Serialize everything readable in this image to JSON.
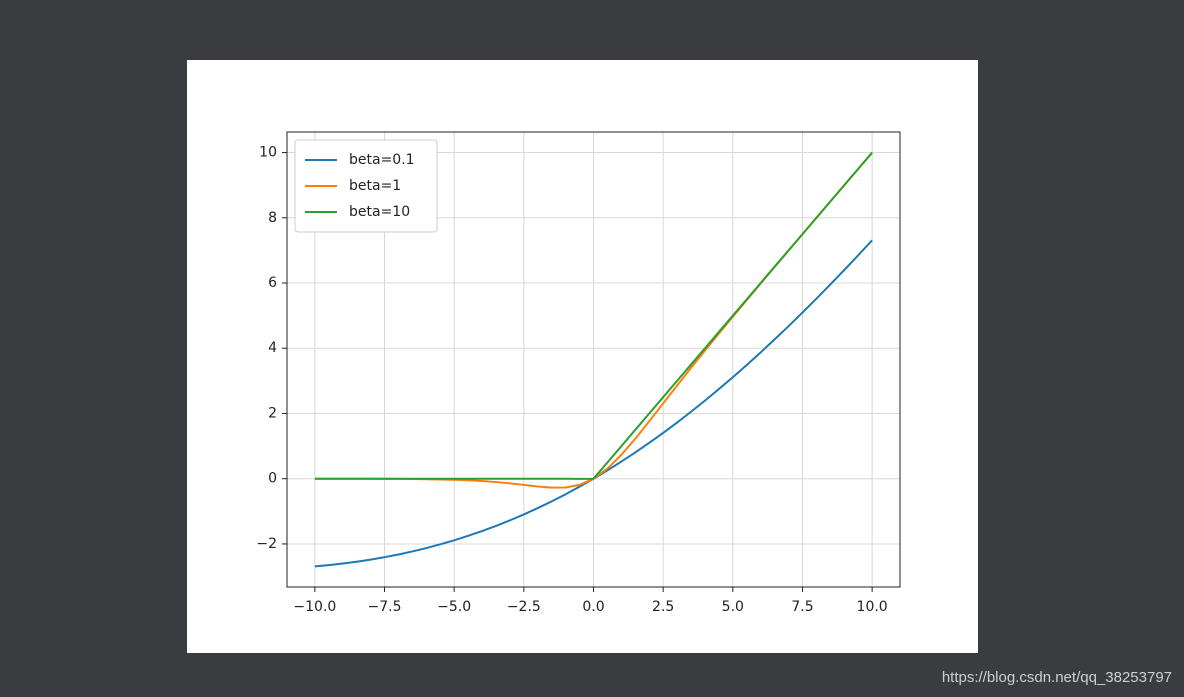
{
  "chart_data": {
    "type": "line",
    "x": [
      -10,
      -9.5,
      -9,
      -8.5,
      -8,
      -7.5,
      -7,
      -6.5,
      -6,
      -5.5,
      -5,
      -4.5,
      -4,
      -3.5,
      -3,
      -2.5,
      -2,
      -1.5,
      -1,
      -0.5,
      0,
      0.5,
      1,
      1.5,
      2,
      2.5,
      3,
      3.5,
      4,
      4.5,
      5,
      5.5,
      6,
      6.5,
      7,
      7.5,
      8,
      8.5,
      9,
      9.5,
      10
    ],
    "series": [
      {
        "name": "beta=0.1",
        "color": "#1f77b4",
        "values": [
          -2.689,
          -2.649,
          -2.601,
          -2.545,
          -2.48,
          -2.406,
          -2.323,
          -2.229,
          -2.126,
          -2.012,
          -1.888,
          -1.752,
          -1.605,
          -1.447,
          -1.277,
          -1.095,
          -0.9,
          -0.694,
          -0.475,
          -0.244,
          0,
          0.256,
          0.525,
          0.806,
          1.1,
          1.405,
          1.723,
          2.053,
          2.395,
          2.748,
          3.112,
          3.488,
          3.874,
          4.271,
          4.677,
          5.094,
          5.52,
          5.955,
          6.399,
          6.851,
          7.311
        ]
      },
      {
        "name": "beta=1",
        "color": "#ff7f0e",
        "values": [
          -0.0005,
          -0.0007,
          -0.0011,
          -0.0017,
          -0.0027,
          -0.0042,
          -0.0064,
          -0.0098,
          -0.0148,
          -0.0223,
          -0.0335,
          -0.0489,
          -0.0719,
          -0.1026,
          -0.1423,
          -0.1896,
          -0.2384,
          -0.2736,
          -0.2689,
          -0.1888,
          0,
          0.3112,
          0.7311,
          1.2264,
          1.7616,
          2.3104,
          2.8577,
          3.3975,
          3.9281,
          4.4511,
          4.9665,
          5.4777,
          5.9852,
          6.4902,
          6.9936,
          7.4959,
          7.9973,
          8.4983,
          8.9989,
          9.4993,
          9.9995
        ]
      },
      {
        "name": "beta=10",
        "color": "#2ca02c",
        "values": [
          0,
          0,
          0,
          0,
          0,
          0,
          0,
          0,
          0,
          0,
          0,
          0,
          0,
          0,
          0,
          0,
          0,
          0,
          -5e-05,
          -0.00335,
          0,
          0.49665,
          0.99995,
          1.5,
          2,
          2.5,
          3,
          3.5,
          4,
          4.5,
          5,
          5.5,
          6,
          6.5,
          7,
          7.5,
          8,
          8.5,
          9,
          9.5,
          10
        ]
      }
    ],
    "xlim": [
      -11,
      11
    ],
    "ylim": [
      -3.32,
      10.63
    ],
    "xticks": [
      {
        "value": -10,
        "label": "−10.0"
      },
      {
        "value": -7.5,
        "label": "−7.5"
      },
      {
        "value": -5,
        "label": "−5.0"
      },
      {
        "value": -2.5,
        "label": "−2.5"
      },
      {
        "value": 0,
        "label": "0.0"
      },
      {
        "value": 2.5,
        "label": "2.5"
      },
      {
        "value": 5,
        "label": "5.0"
      },
      {
        "value": 7.5,
        "label": "7.5"
      },
      {
        "value": 10,
        "label": "10.0"
      }
    ],
    "yticks": [
      {
        "value": -2,
        "label": "−2"
      },
      0,
      2,
      4,
      6,
      8,
      10
    ],
    "grid": true,
    "legend": "upper left"
  },
  "watermark": "https://blog.csdn.net/qq_38253797"
}
